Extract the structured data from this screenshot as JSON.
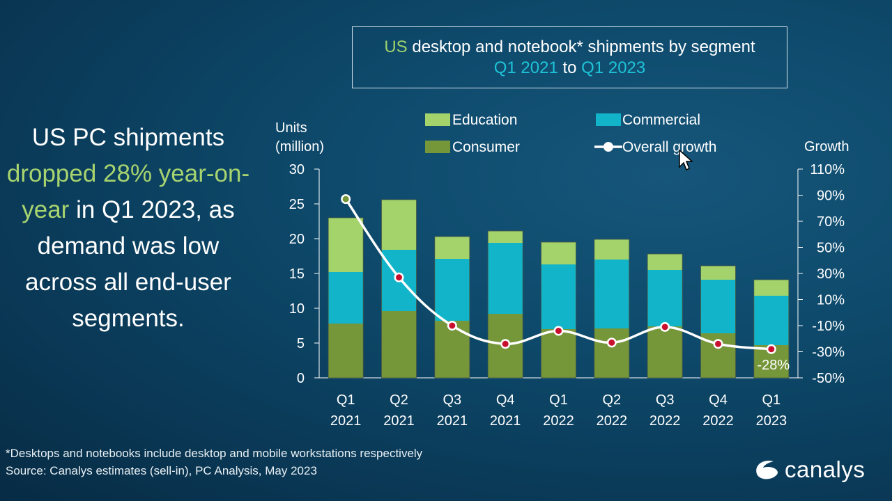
{
  "title": {
    "line1_prefix": "US",
    "line1_rest": " desktop and notebook* shipments by segment",
    "line2_start": "Q1 2021",
    "line2_mid": " to ",
    "line2_end": "Q1 2023"
  },
  "headline": {
    "part1": "US PC shipments",
    "part2": "dropped 28% year-on-year",
    "part3": " in Q1 2023, as demand was low across all end-user segments."
  },
  "footer": {
    "note": "*Desktops and notebooks  include desktop and mobile workstations respectively",
    "source": "Source:  Canalys estimates (sell-in), PC Analysis, May 2023"
  },
  "logo": {
    "text": "canalys",
    "icon": "canalys-logo-icon"
  },
  "colors": {
    "consumer": "#76963a",
    "commercial": "#11b4c9",
    "education": "#a4d36c",
    "growth_line": "#ffffff",
    "growth_marker": "#c8102e",
    "green_highlight": "#a7d46f",
    "cyan_highlight": "#1ec3d8"
  },
  "chart_data": {
    "type": "bar",
    "stacked": true,
    "categories": [
      "Q1\n2021",
      "Q2\n2021",
      "Q3\n2021",
      "Q4\n2021",
      "Q1\n2022",
      "Q2\n2022",
      "Q3\n2022",
      "Q4\n2022",
      "Q1\n2023"
    ],
    "series": [
      {
        "name": "Consumer",
        "values": [
          7.8,
          9.6,
          8.2,
          9.2,
          7.0,
          7.1,
          7.4,
          6.4,
          4.7
        ]
      },
      {
        "name": "Commercial",
        "values": [
          7.4,
          8.8,
          8.9,
          10.2,
          9.3,
          9.9,
          8.1,
          7.7,
          7.1
        ]
      },
      {
        "name": "Education",
        "values": [
          7.8,
          7.2,
          3.2,
          1.7,
          3.2,
          2.9,
          2.3,
          2.0,
          2.3
        ]
      }
    ],
    "line_series": {
      "name": "Overall growth",
      "axis": "right",
      "values": [
        87,
        27,
        -10,
        -24,
        -14,
        -23,
        -11,
        -24,
        -28
      ]
    },
    "ylabel": "Units\n(million)",
    "ylim": [
      0,
      30
    ],
    "yticks": [
      "0",
      "5",
      "10",
      "15",
      "20",
      "25",
      "30"
    ],
    "y2label": "Growth",
    "y2lim": [
      -50,
      110
    ],
    "y2ticks": [
      "-50%",
      "-30%",
      "-10%",
      "10%",
      "30%",
      "50%",
      "70%",
      "90%",
      "110%"
    ],
    "annotation": "-28%",
    "legend": [
      "Education",
      "Commercial",
      "Consumer",
      "Overall growth"
    ],
    "legend_position": "top",
    "grid": false
  }
}
